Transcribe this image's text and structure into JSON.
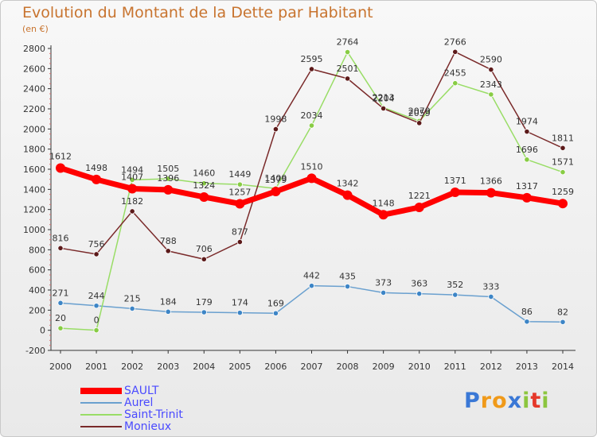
{
  "title": "Evolution du Montant de la Dette par Habitant",
  "subtitle": "(en €)",
  "brand": {
    "text": "Proxiti",
    "letters": [
      {
        "ch": "P",
        "color": "#3a78d6"
      },
      {
        "ch": "r",
        "color": "#f09a1a"
      },
      {
        "ch": "o",
        "color": "#f09a1a"
      },
      {
        "ch": "x",
        "color": "#3a78d6"
      },
      {
        "ch": "i",
        "color": "#8cc63f"
      },
      {
        "ch": "t",
        "color": "#e5382a"
      },
      {
        "ch": "i",
        "color": "#8cc63f"
      }
    ]
  },
  "chart_data": {
    "type": "line",
    "x": [
      "2000",
      "2001",
      "2002",
      "2003",
      "2004",
      "2005",
      "2006",
      "2007",
      "2008",
      "2009",
      "2010",
      "2011",
      "2012",
      "2013",
      "2014"
    ],
    "ylim": [
      -200,
      2800
    ],
    "yticks": [
      -200,
      0,
      200,
      400,
      600,
      800,
      1000,
      1200,
      1400,
      1600,
      1800,
      2000,
      2200,
      2400,
      2600,
      2800
    ],
    "grid": false,
    "legend_position": "bottom-left",
    "series": [
      {
        "name": "SAULT",
        "color": "#ff0000",
        "marker_color": "#ff0000",
        "width": 7,
        "values": [
          1612,
          1498,
          1407,
          1396,
          1324,
          1257,
          1379,
          1510,
          1342,
          1148,
          1221,
          1371,
          1366,
          1317,
          1259
        ]
      },
      {
        "name": "Aurel",
        "color": "#6aa0cf",
        "marker_color": "#3d85c6",
        "width": 1.5,
        "values": [
          271,
          244,
          215,
          184,
          179,
          174,
          169,
          442,
          435,
          373,
          363,
          352,
          333,
          86,
          82
        ]
      },
      {
        "name": "Saint-Trinit",
        "color": "#99dd66",
        "marker_color": "#88cc44",
        "width": 1.5,
        "values": [
          20,
          0,
          1494,
          1505,
          1460,
          1449,
          1409,
          2034,
          2764,
          2213,
          2079,
          2455,
          2343,
          1696,
          1571
        ]
      },
      {
        "name": "Monieux",
        "color": "#7a2a2a",
        "marker_color": "#5c1a1a",
        "width": 1.5,
        "values": [
          816,
          756,
          1182,
          788,
          706,
          877,
          1998,
          2595,
          2501,
          2204,
          2059,
          2766,
          2590,
          1974,
          1811
        ]
      }
    ]
  }
}
